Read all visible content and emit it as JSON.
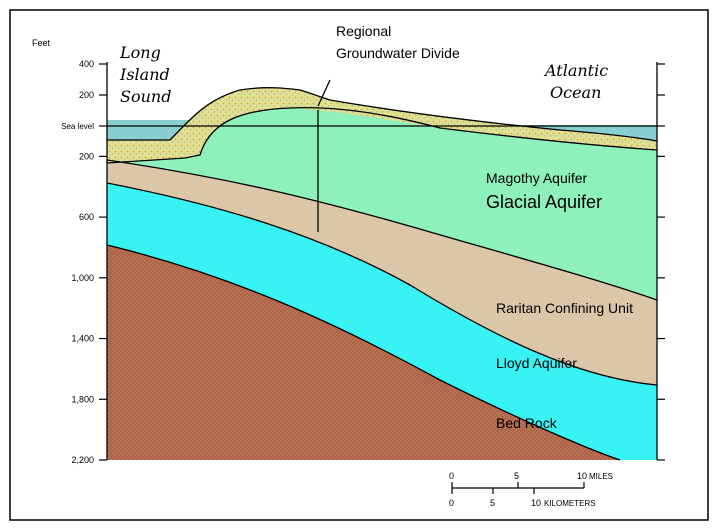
{
  "axis": {
    "unit": "Feet",
    "ticks": [
      {
        "label": "400",
        "value": 400
      },
      {
        "label": "200",
        "value": 200
      },
      {
        "label": "Sea level",
        "value": 0
      },
      {
        "label": "200",
        "value": -200
      },
      {
        "label": "600",
        "value": -600
      },
      {
        "label": "1,000",
        "value": -1000
      },
      {
        "label": "1,400",
        "value": -1400
      },
      {
        "label": "1,800",
        "value": -1800
      },
      {
        "label": "2,200",
        "value": -2200
      }
    ]
  },
  "labels": {
    "long_island_sound": [
      "Long",
      "Island",
      "Sound"
    ],
    "divide": [
      "Regional",
      "Groundwater Divide"
    ],
    "atlantic_ocean": [
      "Atlantic",
      "Ocean"
    ],
    "magothy": "Magothy Aquifer",
    "glacial": "Glacial Aquifer",
    "raritan": "Raritan Confining Unit",
    "lloyd": "Lloyd Aquifer",
    "bedrock": "Bed Rock"
  },
  "scale_bar": {
    "miles_ticks": [
      "0",
      "5",
      "10"
    ],
    "miles_unit": "MILES",
    "km_ticks": [
      "0",
      "5",
      "10"
    ],
    "km_unit": "KILOMETERS"
  },
  "colors": {
    "magothy": "#8ef0bb",
    "raritan": "#dbc6a8",
    "lloyd": "#38f2f4",
    "bedrock": "#b96f52",
    "glacial": "#e2df8e",
    "water": "#89cfcf",
    "line": "#000000"
  }
}
